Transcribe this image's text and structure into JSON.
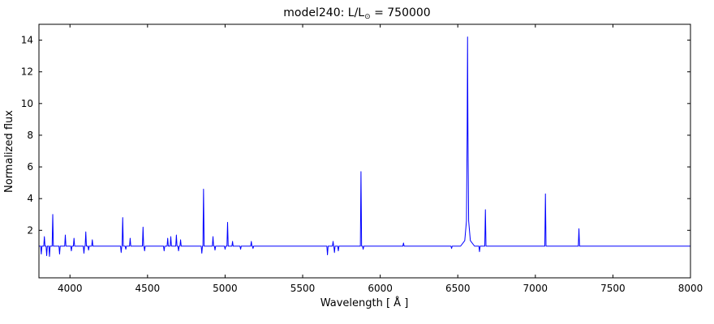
{
  "figure": {
    "title": {
      "pre": "model240: L/L",
      "sub": "⊙",
      "post": " = 750000"
    }
  },
  "chart_data": {
    "type": "line",
    "title": "model240: L/L⊙ = 750000",
    "xlabel": "Wavelength [ Å ]",
    "ylabel": "Normalized flux",
    "xlim": [
      3800,
      8000
    ],
    "ylim": [
      -1,
      15
    ],
    "xticks": [
      4000,
      4500,
      5000,
      5500,
      6000,
      6500,
      7000,
      7500,
      8000
    ],
    "yticks": [
      2,
      4,
      6,
      8,
      10,
      12,
      14
    ],
    "line_color": "#0000ff",
    "axis_color": "#000000",
    "baseline_flux": 1.0,
    "emission_lines": [
      {
        "wavelength": 3835,
        "peak": 1.6
      },
      {
        "wavelength": 3889,
        "peak": 3.0
      },
      {
        "wavelength": 3970,
        "peak": 1.7
      },
      {
        "wavelength": 4026,
        "peak": 1.5
      },
      {
        "wavelength": 4102,
        "peak": 1.9
      },
      {
        "wavelength": 4144,
        "peak": 1.4
      },
      {
        "wavelength": 4340,
        "peak": 2.8
      },
      {
        "wavelength": 4388,
        "peak": 1.5
      },
      {
        "wavelength": 4471,
        "peak": 2.2
      },
      {
        "wavelength": 4630,
        "peak": 1.5
      },
      {
        "wavelength": 4650,
        "peak": 1.6
      },
      {
        "wavelength": 4686,
        "peak": 1.7
      },
      {
        "wavelength": 4713,
        "peak": 1.4
      },
      {
        "wavelength": 4861,
        "peak": 4.6
      },
      {
        "wavelength": 4922,
        "peak": 1.6
      },
      {
        "wavelength": 5016,
        "peak": 2.5
      },
      {
        "wavelength": 5048,
        "peak": 1.3
      },
      {
        "wavelength": 5169,
        "peak": 1.3
      },
      {
        "wavelength": 5696,
        "peak": 1.3
      },
      {
        "wavelength": 5876,
        "peak": 5.7
      },
      {
        "wavelength": 6150,
        "peak": 1.2
      },
      {
        "wavelength": 6563,
        "peak": 14.2,
        "broad": true
      },
      {
        "wavelength": 6678,
        "peak": 3.3
      },
      {
        "wavelength": 7065,
        "peak": 4.3
      },
      {
        "wavelength": 7281,
        "peak": 2.1
      }
    ],
    "absorption_dips": [
      {
        "wavelength": 3815,
        "depth": 0.5
      },
      {
        "wavelength": 3850,
        "depth": 0.4
      },
      {
        "wavelength": 3868,
        "depth": 0.35
      },
      {
        "wavelength": 3933,
        "depth": 0.5
      },
      {
        "wavelength": 4009,
        "depth": 0.7
      },
      {
        "wavelength": 4090,
        "depth": 0.55
      },
      {
        "wavelength": 4120,
        "depth": 0.75
      },
      {
        "wavelength": 4330,
        "depth": 0.6
      },
      {
        "wavelength": 4360,
        "depth": 0.8
      },
      {
        "wavelength": 4481,
        "depth": 0.7
      },
      {
        "wavelength": 4607,
        "depth": 0.7
      },
      {
        "wavelength": 4700,
        "depth": 0.7
      },
      {
        "wavelength": 4850,
        "depth": 0.55
      },
      {
        "wavelength": 4935,
        "depth": 0.75
      },
      {
        "wavelength": 5000,
        "depth": 0.8
      },
      {
        "wavelength": 5100,
        "depth": 0.8
      },
      {
        "wavelength": 5180,
        "depth": 0.85
      },
      {
        "wavelength": 5660,
        "depth": 0.45
      },
      {
        "wavelength": 5705,
        "depth": 0.6
      },
      {
        "wavelength": 5730,
        "depth": 0.7
      },
      {
        "wavelength": 5890,
        "depth": 0.8
      },
      {
        "wavelength": 6460,
        "depth": 0.85
      },
      {
        "wavelength": 6640,
        "depth": 0.65
      }
    ]
  }
}
